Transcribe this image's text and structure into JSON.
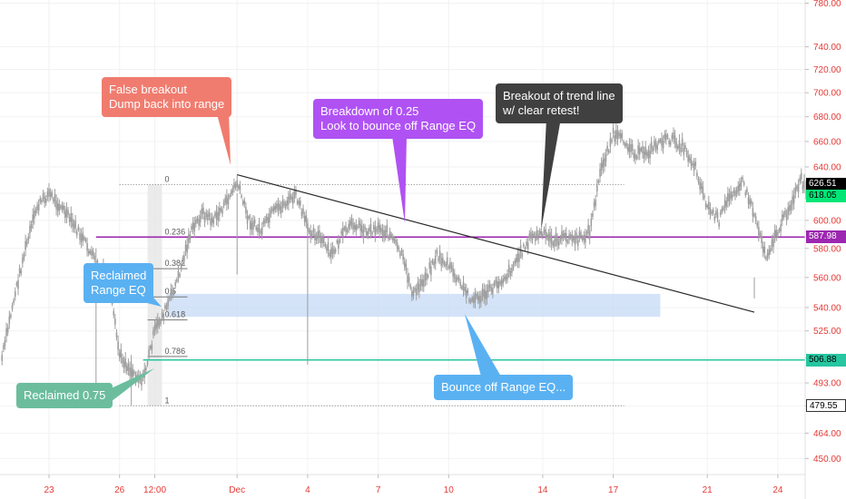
{
  "chart_data": {
    "type": "line",
    "subtype": "candlestick-price-chart",
    "y_axis": {
      "position": "right",
      "scale": "log",
      "ticks": [
        "780.00",
        "740.00",
        "720.00",
        "700.00",
        "680.00",
        "660.00",
        "640.00",
        "620.00",
        "600.00",
        "580.00",
        "560.00",
        "540.00",
        "525.00",
        "508.00",
        "493.00",
        "479.55",
        "464.00",
        "450.00"
      ],
      "tick_values": [
        780,
        740,
        720,
        700,
        680,
        660,
        640,
        620,
        600,
        580,
        560,
        540,
        525,
        508,
        493,
        479.55,
        464,
        450
      ],
      "ylim": [
        440,
        800
      ]
    },
    "x_axis": {
      "ticks": [
        "23",
        "26",
        "12:00",
        "Dec",
        "4",
        "7",
        "10",
        "14",
        "17",
        "21",
        "24"
      ],
      "tick_values": [
        "Nov 23",
        "Nov 26",
        "Nov 27 12:00",
        "Dec 1",
        "Dec 4",
        "Dec 7",
        "Dec 10",
        "Dec 14",
        "Dec 17",
        "Dec 21",
        "Dec 24"
      ],
      "xlim": [
        "Nov 21",
        "Dec 25"
      ]
    },
    "price_labels": [
      {
        "name": "upper-range",
        "text": "626.51",
        "value": 626.51,
        "color": "#000000",
        "text_color": "#ffffff"
      },
      {
        "name": "last-price",
        "text": "618.05",
        "value": 618.05,
        "color": "#00e676",
        "text_color": "#000000"
      },
      {
        "name": "range-eq",
        "text": "587.98",
        "value": 587.98,
        "color": "#9c27b0",
        "text_color": "#ffffff"
      },
      {
        "name": "level-075",
        "text": "506.88",
        "value": 506.88,
        "color": "#26c6a0",
        "text_color": "#000000"
      },
      {
        "name": "range-low",
        "text": "479.55",
        "value": 479.55,
        "color": "#ffffff",
        "text_color": "#000000"
      }
    ],
    "horizontal_levels": [
      {
        "name": "purple-line",
        "value": 587.98,
        "color": "#9c27b0",
        "from": "Nov 25",
        "to": "Dec 25"
      },
      {
        "name": "teal-line",
        "value": 506.88,
        "color": "#26c6a0",
        "from": "Nov 27",
        "to": "Dec 25"
      }
    ],
    "fib_levels": [
      {
        "label": "0",
        "value": 626.51
      },
      {
        "label": "0.236",
        "value": 588
      },
      {
        "label": "0.382",
        "value": 566
      },
      {
        "label": "0.5",
        "value": 547
      },
      {
        "label": "0.618",
        "value": 532
      },
      {
        "label": "0.786",
        "value": 509
      },
      {
        "label": "1",
        "value": 479.55
      }
    ],
    "range_eq_zone": {
      "from": "Nov 28",
      "to": "Dec 19",
      "low": 534,
      "high": 549,
      "color": "#c5d9f5"
    },
    "trend_line": {
      "start": {
        "x": "Dec 1",
        "y": 634
      },
      "end": {
        "x": "Dec 23",
        "y": 537
      },
      "color": "#2a2a2a"
    },
    "price_series_points": [
      [
        "Nov 21",
        508
      ],
      [
        "Nov 21 12:00",
        545
      ],
      [
        "Nov 22",
        580
      ],
      [
        "Nov 22 12:00",
        610
      ],
      [
        "Nov 23",
        620
      ],
      [
        "Nov 23 12:00",
        610
      ],
      [
        "Nov 24",
        598
      ],
      [
        "Nov 24 12:00",
        585
      ],
      [
        "Nov 25",
        570
      ],
      [
        "Nov 25 12:00",
        560
      ],
      [
        "Nov 26",
        510
      ],
      [
        "Nov 26 12:00",
        500
      ],
      [
        "Nov 27",
        495
      ],
      [
        "Nov 27 12:00",
        525
      ],
      [
        "Nov 28",
        540
      ],
      [
        "Nov 28 12:00",
        560
      ],
      [
        "Nov 29",
        590
      ],
      [
        "Nov 29 12:00",
        605
      ],
      [
        "Nov 30",
        600
      ],
      [
        "Nov 30 12:00",
        612
      ],
      [
        "Dec 1",
        628
      ],
      [
        "Dec 1 12:00",
        600
      ],
      [
        "Dec 2",
        592
      ],
      [
        "Dec 2 12:00",
        605
      ],
      [
        "Dec 3",
        612
      ],
      [
        "Dec 3 12:00",
        618
      ],
      [
        "Dec 4",
        595
      ],
      [
        "Dec 4 12:00",
        588
      ],
      [
        "Dec 5",
        575
      ],
      [
        "Dec 5 12:00",
        590
      ],
      [
        "Dec 6",
        598
      ],
      [
        "Dec 6 12:00",
        592
      ],
      [
        "Dec 7",
        595
      ],
      [
        "Dec 7 12:00",
        590
      ],
      [
        "Dec 8",
        575
      ],
      [
        "Dec 8 12:00",
        548
      ],
      [
        "Dec 9",
        560
      ],
      [
        "Dec 9 12:00",
        575
      ],
      [
        "Dec 10",
        568
      ],
      [
        "Dec 10 12:00",
        555
      ],
      [
        "Dec 11",
        545
      ],
      [
        "Dec 11 12:00",
        548
      ],
      [
        "Dec 12",
        555
      ],
      [
        "Dec 12 12:00",
        562
      ],
      [
        "Dec 13",
        575
      ],
      [
        "Dec 13 12:00",
        588
      ],
      [
        "Dec 14",
        590
      ],
      [
        "Dec 14 12:00",
        585
      ],
      [
        "Dec 15",
        588
      ],
      [
        "Dec 15 12:00",
        586
      ],
      [
        "Dec 16",
        592
      ],
      [
        "Dec 16 12:00",
        640
      ],
      [
        "Dec 17",
        665
      ],
      [
        "Dec 17 12:00",
        660
      ],
      [
        "Dec 18",
        650
      ],
      [
        "Dec 18 12:00",
        652
      ],
      [
        "Dec 19",
        660
      ],
      [
        "Dec 19 12:00",
        662
      ],
      [
        "Dec 20",
        655
      ],
      [
        "Dec 20 12:00",
        640
      ],
      [
        "Dec 21",
        610
      ],
      [
        "Dec 21 12:00",
        600
      ],
      [
        "Dec 22",
        620
      ],
      [
        "Dec 22 12:00",
        628
      ],
      [
        "Dec 23",
        605
      ],
      [
        "Dec 23 12:00",
        575
      ],
      [
        "Dec 24",
        592
      ],
      [
        "Dec 24 12:00",
        610
      ],
      [
        "Dec 25",
        630
      ],
      [
        "Dec 25 06:00",
        618
      ]
    ],
    "annotations": [
      {
        "name": "false-breakout",
        "text": "False breakout\nDump back into range",
        "color": "#f07c6f"
      },
      {
        "name": "breakdown",
        "text": "Breakdown of 0.25\nLook to bounce off Range EQ",
        "color": "#b052f3"
      },
      {
        "name": "trendline-breakout",
        "text": "Breakout of trend line\nw/ clear retest!",
        "color": "#404040"
      },
      {
        "name": "reclaimed-eq",
        "text": "Reclaimed\nRange EQ",
        "color": "#5ab1f2"
      },
      {
        "name": "reclaimed-075",
        "text": "Reclaimed 0.75",
        "color": "#6cbd9d"
      },
      {
        "name": "bounce-eq",
        "text": "Bounce off Range EQ...",
        "color": "#5ab1f2"
      }
    ],
    "colors": {
      "candles": "#9e9e9e",
      "grid": "#f2f2f2",
      "axis_text": "#e53935",
      "axis_line": "#e0e0e0"
    }
  }
}
